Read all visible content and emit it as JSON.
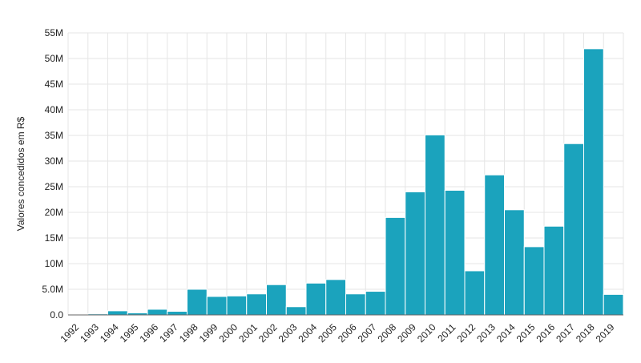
{
  "chart_data": {
    "type": "bar",
    "title": "",
    "xlabel": "",
    "ylabel": "Valores concedidos em R$",
    "categories": [
      "1992",
      "1993",
      "1994",
      "1995",
      "1996",
      "1997",
      "1998",
      "1999",
      "2000",
      "2001",
      "2002",
      "2003",
      "2004",
      "2005",
      "2006",
      "2007",
      "2008",
      "2009",
      "2010",
      "2011",
      "2012",
      "2013",
      "2014",
      "2015",
      "2016",
      "2017",
      "2018",
      "2019"
    ],
    "values": [
      0,
      0.2,
      0.8,
      0.4,
      1.1,
      0.7,
      5.0,
      3.6,
      3.7,
      4.1,
      5.9,
      1.6,
      6.2,
      6.9,
      4.1,
      4.6,
      19.0,
      24.0,
      35.1,
      24.3,
      8.6,
      27.3,
      20.5,
      13.3,
      17.3,
      33.4,
      51.9,
      4.0
    ],
    "unit": "M",
    "ylim": [
      0,
      55
    ],
    "yticks": [
      "0.0",
      "5.0M",
      "10M",
      "15M",
      "20M",
      "25M",
      "30M",
      "35M",
      "40M",
      "45M",
      "50M",
      "55M"
    ],
    "grid": true,
    "colors": {
      "bar": "#1ba3bd"
    }
  }
}
